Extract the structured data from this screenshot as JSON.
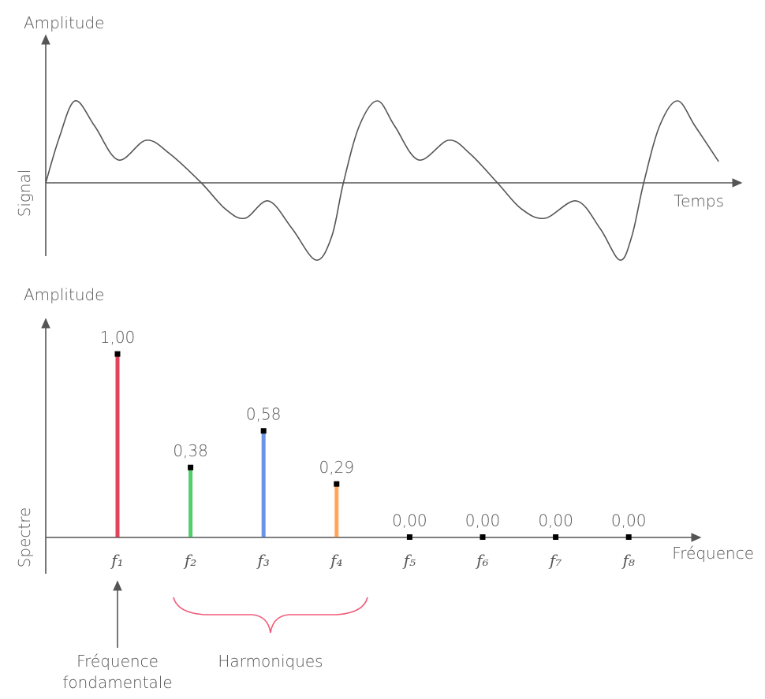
{
  "chart_data": [
    {
      "type": "line",
      "y_top_label": "Amplitude",
      "y_label": "Signal",
      "x_label": "Temps",
      "color": "#555555",
      "x": [
        0,
        0.045,
        0.098,
        0.164,
        0.243,
        0.336,
        0.415,
        0.521,
        0.601,
        0.667,
        0.746,
        0.825,
        0.905,
        0.958,
        0.997,
        1.05,
        1.111,
        1.169,
        1.249,
        1.349,
        1.421,
        1.513,
        1.593,
        1.672,
        1.778,
        1.857,
        1.923,
        1.963,
        2.003,
        2.056,
        2.116,
        2.175,
        2.254
      ],
      "values": [
        0,
        0.57,
        1.04,
        0.72,
        0.29,
        0.54,
        0.37,
        0,
        -0.33,
        -0.45,
        -0.23,
        -0.58,
        -0.98,
        -0.68,
        0,
        0.72,
        1.04,
        0.72,
        0.29,
        0.54,
        0.37,
        0,
        -0.33,
        -0.45,
        -0.23,
        -0.58,
        -0.98,
        -0.68,
        0,
        0.72,
        1.04,
        0.72,
        0.27
      ],
      "xlim": [
        0,
        2.33
      ],
      "ylim": [
        -1,
        1.9
      ]
    },
    {
      "type": "bar",
      "y_top_label": "Amplitude",
      "y_label": "Spectre",
      "x_label": "Fréquence",
      "categories": [
        "f₁",
        "f₂",
        "f₃",
        "f₄",
        "f₅",
        "f₆",
        "f₇",
        "f₈"
      ],
      "values": [
        1.0,
        0.38,
        0.58,
        0.29,
        0,
        0,
        0,
        0
      ],
      "value_labels": [
        "1,00",
        "0,38",
        "0,58",
        "0,29",
        "0,00",
        "0,00",
        "0,00",
        "0,00"
      ],
      "colors": [
        "#e0435a",
        "#4fd06a",
        "#6b93e6",
        "#ffa65c",
        "#555555",
        "#555555",
        "#555555",
        "#555555"
      ],
      "ylim": [
        -0.2,
        1.19
      ],
      "annotations": [
        {
          "lines": [
            "Fréquence",
            "fondamentale"
          ]
        },
        {
          "lines": [
            "Harmoniques"
          ]
        }
      ]
    }
  ]
}
